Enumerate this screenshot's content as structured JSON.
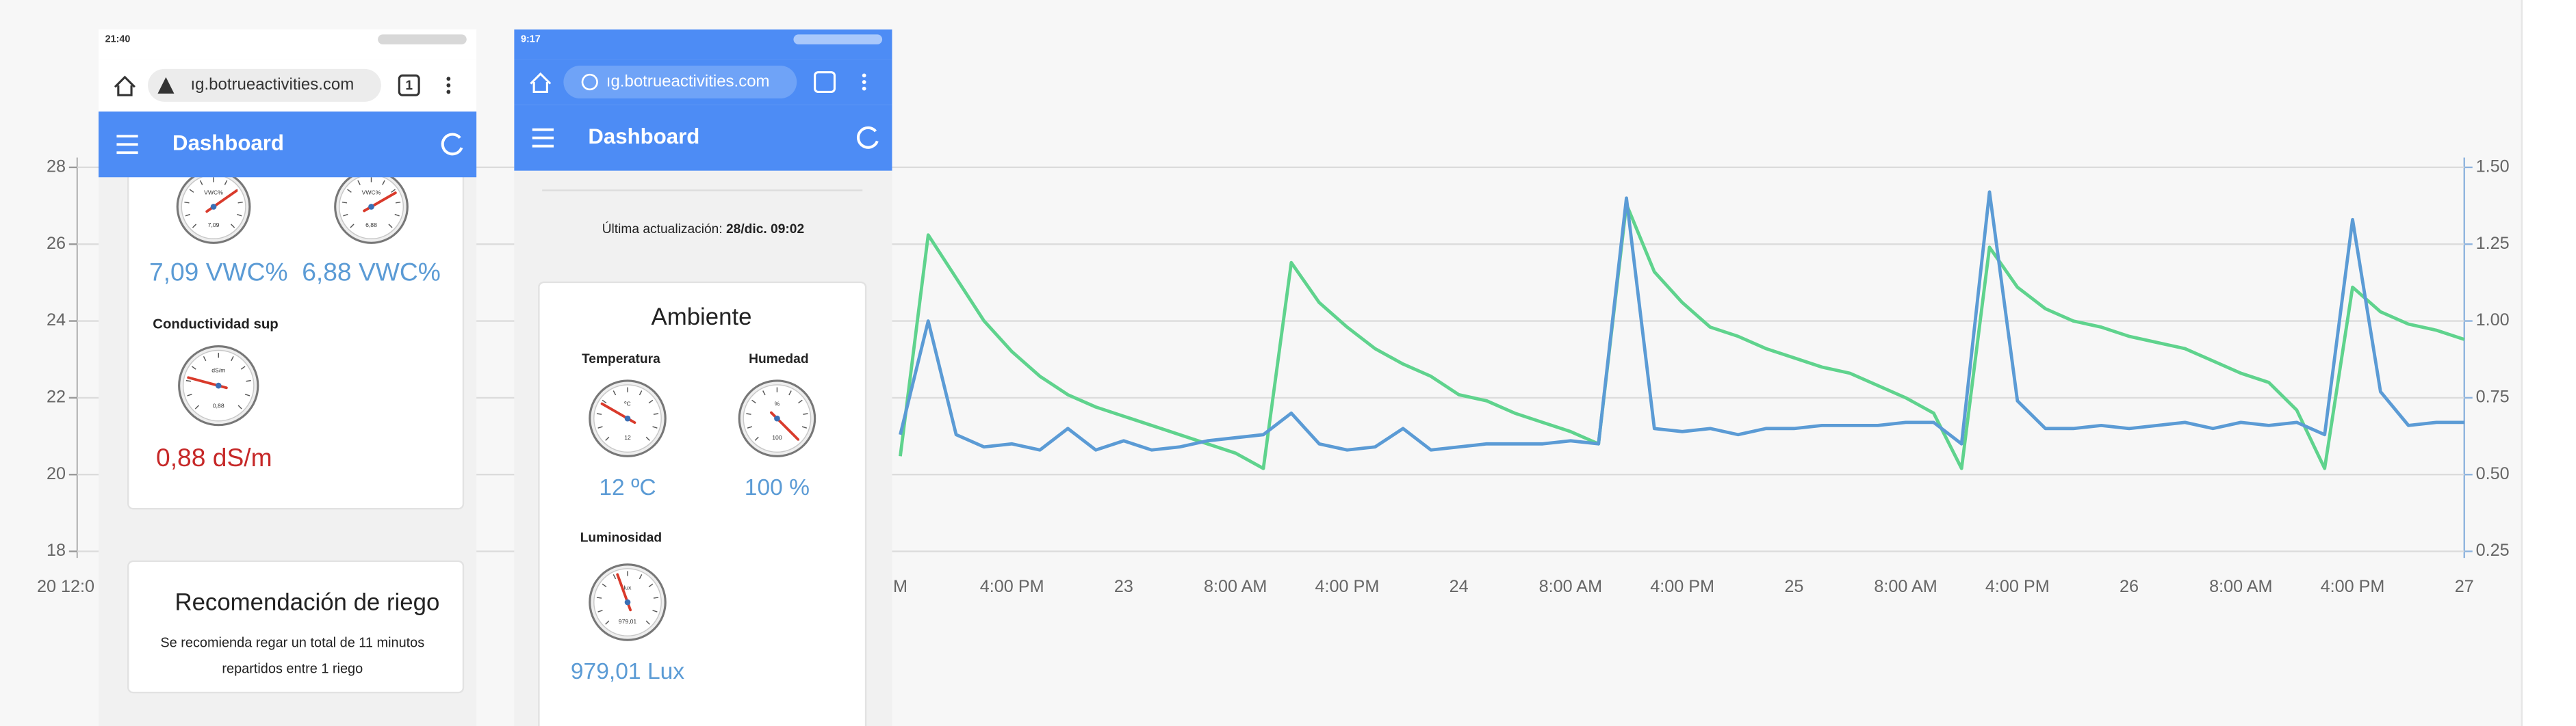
{
  "chart_data": {
    "type": "line",
    "categories": [
      "M",
      null,
      null,
      null,
      "4:00 PM",
      null,
      null,
      null,
      "23",
      null,
      null,
      null,
      "8:00 AM",
      null,
      null,
      null,
      "4:00 PM",
      null,
      null,
      null,
      "24",
      null,
      null,
      null,
      "8:00 AM",
      null,
      null,
      null,
      "4:00 PM",
      null,
      null,
      null,
      "25",
      null,
      null,
      null,
      "8:00 AM",
      null,
      null,
      null,
      "4:00 PM",
      null,
      null,
      null,
      "26",
      null,
      null,
      null,
      "8:00 AM",
      null,
      null,
      null,
      "4:00 PM",
      null,
      null,
      null,
      "27"
    ],
    "series": [
      {
        "color": "#5fd38d",
        "axis": "y2",
        "values": [
          0.56,
          1.28,
          1.14,
          1.0,
          0.9,
          0.82,
          0.76,
          0.72,
          0.69,
          0.66,
          0.63,
          0.6,
          0.57,
          0.52,
          1.19,
          1.06,
          0.98,
          0.91,
          0.86,
          0.82,
          0.76,
          0.74,
          0.7,
          0.67,
          0.64,
          0.6,
          1.38,
          1.16,
          1.06,
          0.98,
          0.95,
          0.91,
          0.88,
          0.85,
          0.83,
          0.79,
          0.75,
          0.7,
          0.52,
          1.24,
          1.11,
          1.04,
          1.0,
          0.98,
          0.95,
          0.93,
          0.91,
          0.87,
          0.83,
          0.8,
          0.71,
          0.52,
          1.11,
          1.03,
          0.99,
          0.97,
          0.94
        ]
      },
      {
        "color": "#5b9bd5",
        "axis": "y2",
        "values": [
          0.63,
          1.0,
          0.63,
          0.59,
          0.6,
          0.58,
          0.65,
          0.58,
          0.61,
          0.58,
          0.59,
          0.61,
          0.62,
          0.63,
          0.7,
          0.6,
          0.58,
          0.59,
          0.65,
          0.58,
          0.59,
          0.6,
          0.6,
          0.6,
          0.61,
          0.6,
          1.4,
          0.65,
          0.64,
          0.65,
          0.63,
          0.65,
          0.65,
          0.66,
          0.66,
          0.66,
          0.67,
          0.67,
          0.6,
          1.42,
          0.74,
          0.65,
          0.65,
          0.66,
          0.65,
          0.66,
          0.67,
          0.65,
          0.67,
          0.66,
          0.67,
          0.63,
          1.33,
          0.77,
          0.66,
          0.67,
          0.67
        ]
      }
    ],
    "ylim": [
      18,
      28
    ],
    "yticks": [
      18,
      20,
      22,
      24,
      26,
      28
    ],
    "y2lim": [
      0.25,
      1.5
    ],
    "y2ticks": [
      {
        "value": 1.5,
        "label": "1.50"
      },
      1.25,
      {
        "value": 1.0,
        "label": "1.00"
      },
      0.75,
      {
        "value": 0.5,
        "label": "0.50"
      },
      0.25
    ],
    "grid": true
  },
  "background": {
    "left_tick_label": "20 12:0"
  },
  "phone_left": {
    "status_time": "21:40",
    "url": "ıg.botrueactivities.com",
    "tab_count": "1",
    "toolbar_title": "Dashboard",
    "moisture": [
      {
        "gauge_unit": "VWC%",
        "gauge_value": "7,09",
        "reading": "7,09 VWC%"
      },
      {
        "gauge_unit": "VWC%",
        "gauge_value": "6,88",
        "reading": "6,88 VWC%"
      }
    ],
    "conductivity": {
      "label": "Conductividad sup",
      "gauge_unit": "dS/m",
      "gauge_value": "0,88",
      "reading": "0,88 dS/m"
    },
    "recommendation": {
      "title": "Recomendación de riego",
      "text_lines": [
        "Se recomienda regar un total de 11 minutos",
        "repartidos entre 1 riego"
      ]
    }
  },
  "phone_right": {
    "status_time": "9:17",
    "url": "ıg.botrueactivities.com",
    "toolbar_title": "Dashboard",
    "last_update_label": "Última actualización:",
    "last_update_value": "28/dic. 09:02",
    "card": {
      "title": "Ambiente",
      "items": [
        {
          "label": "Temperatura",
          "gauge_unit": "ºC",
          "gauge_value": "12",
          "reading": "12 ºC"
        },
        {
          "label": "Humedad",
          "gauge_unit": "%",
          "gauge_value": "100",
          "reading": "100 %"
        },
        {
          "label": "Luminosidad",
          "gauge_unit": "lux",
          "gauge_value": "979,01",
          "reading": "979,01 Lux"
        }
      ]
    }
  }
}
